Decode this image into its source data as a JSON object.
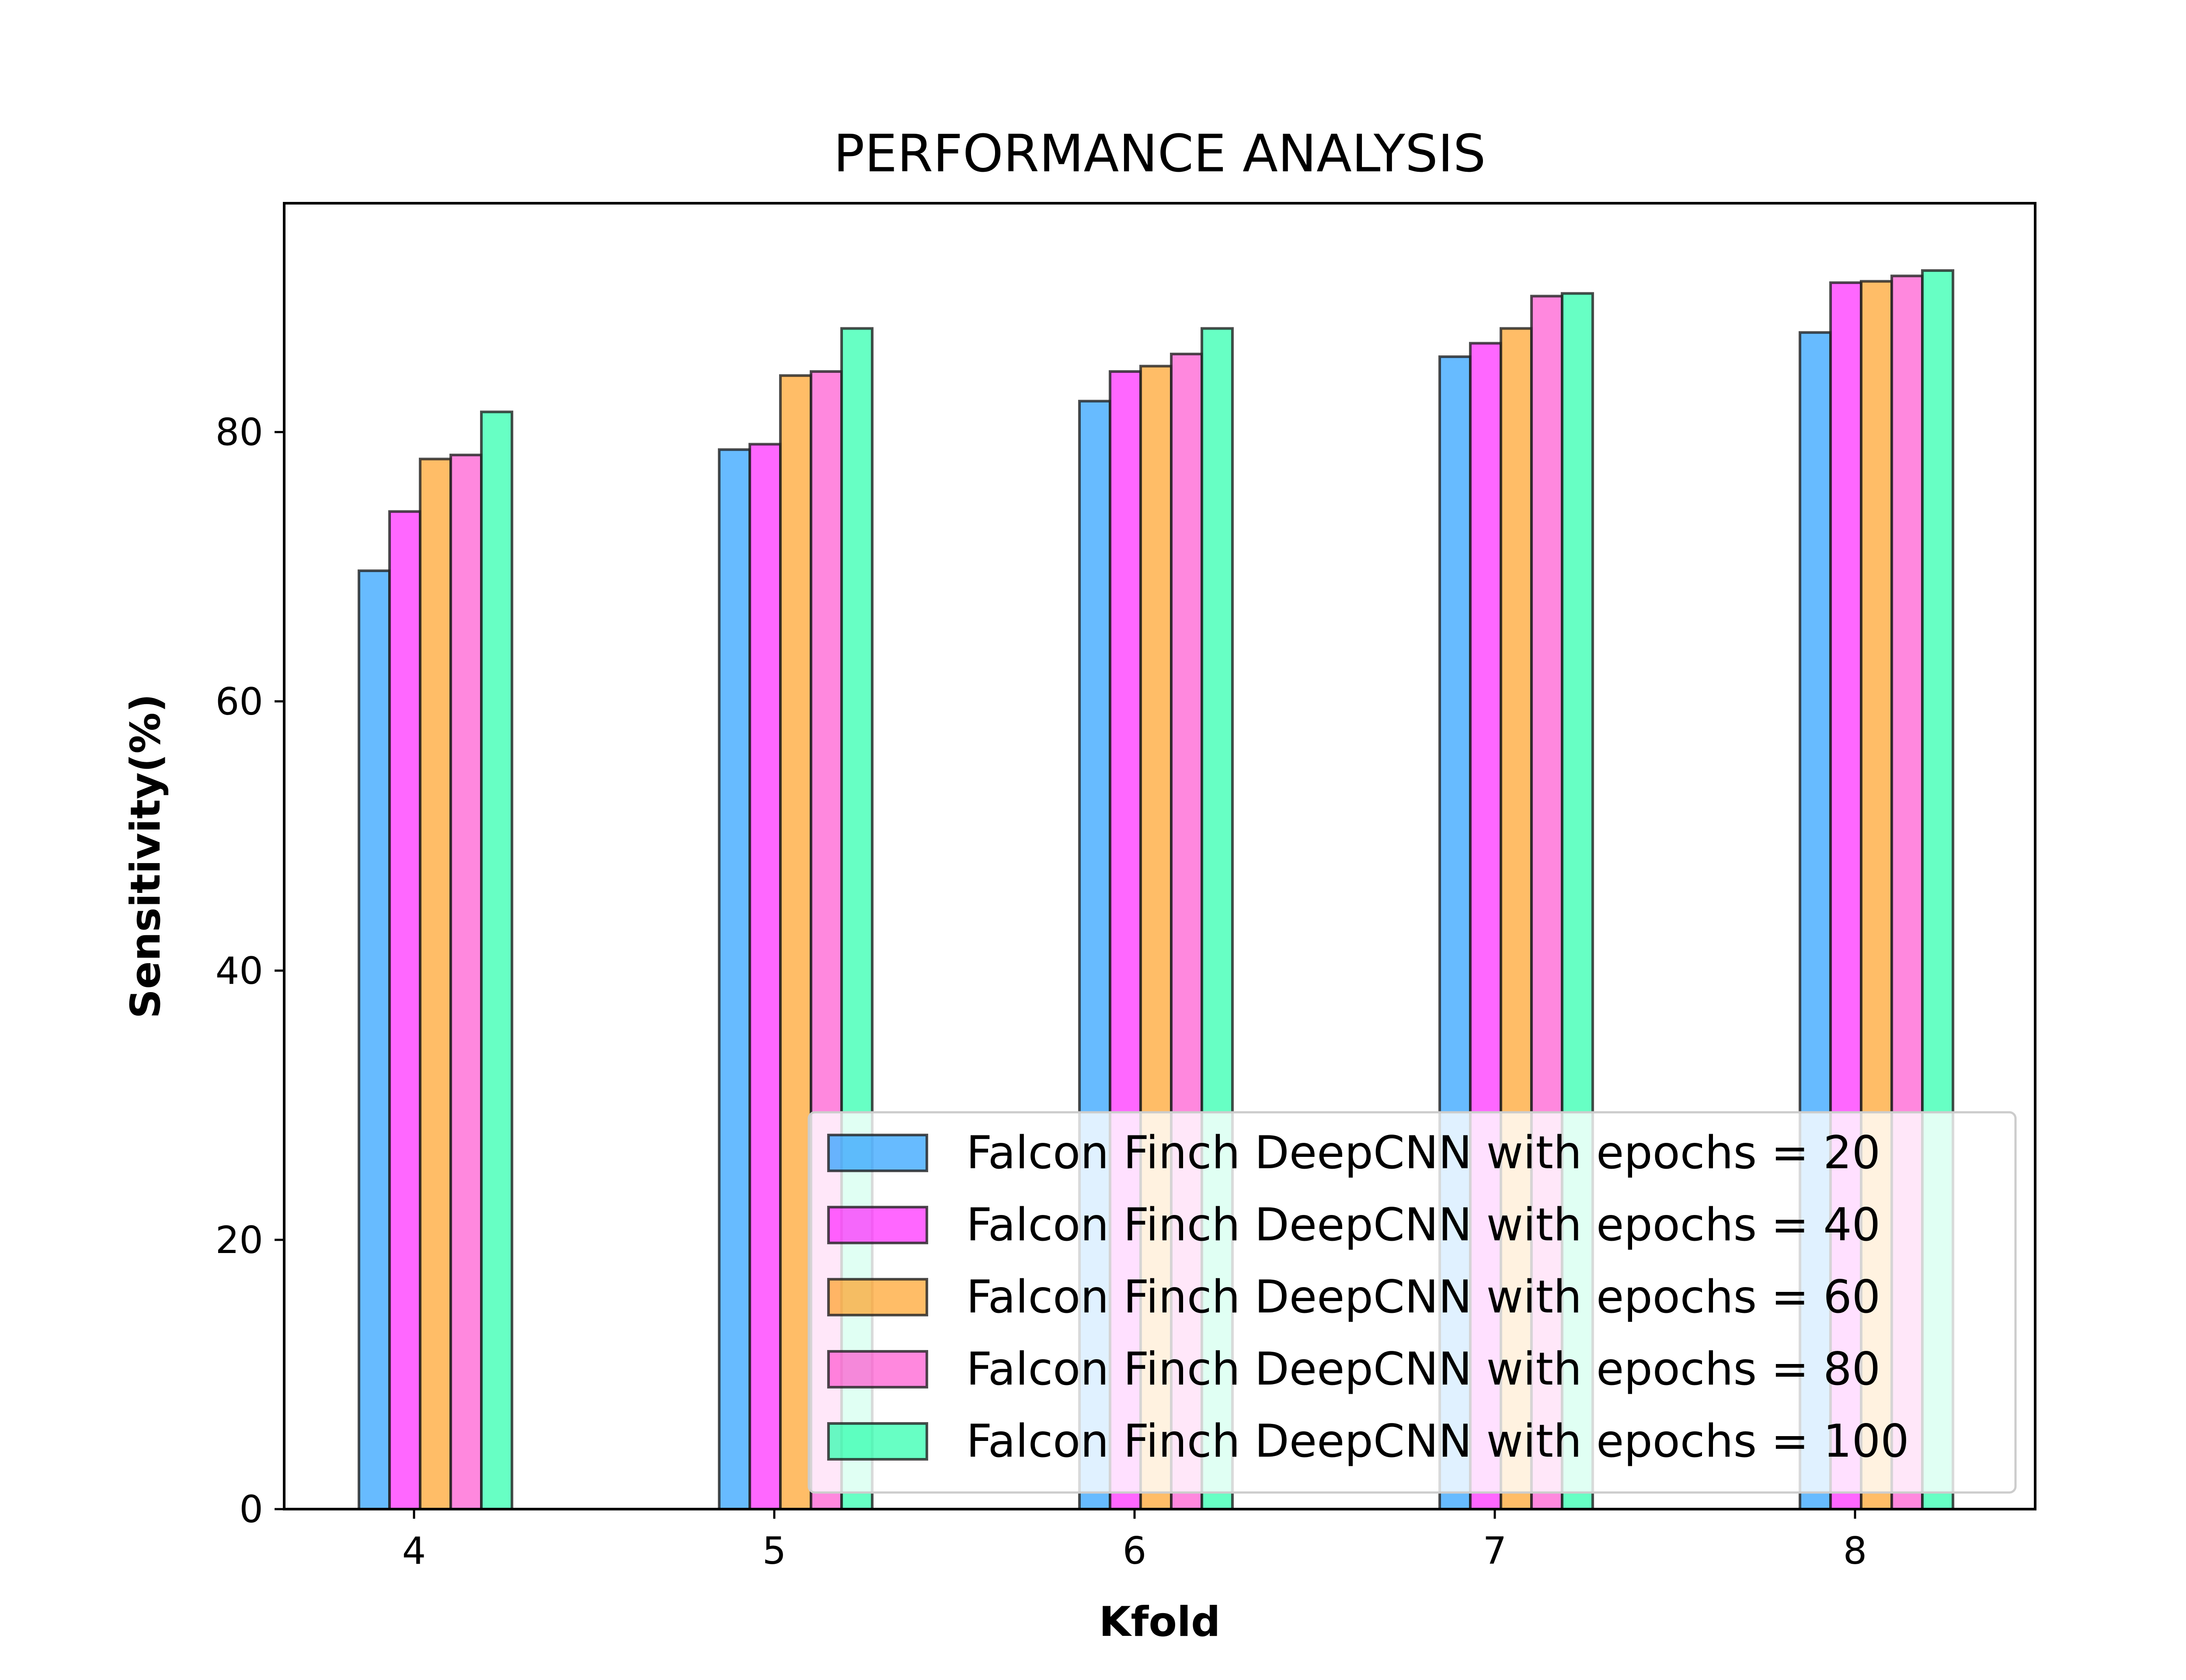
{
  "chart_data": {
    "type": "bar",
    "title": "PERFORMANCE ANALYSIS",
    "xlabel": "Kfold",
    "ylabel": "Sensitivity(%)",
    "categories": [
      "4",
      "5",
      "6",
      "7",
      "8"
    ],
    "ylim": [
      0,
      97
    ],
    "yticks": [
      "0",
      "20",
      "40",
      "60",
      "80"
    ],
    "grid": false,
    "legend_position": "lower-right",
    "series": [
      {
        "name": "Falcon Finch DeepCNN with epochs = 20",
        "color": "#1f9bff",
        "values": [
          69.7,
          78.7,
          82.3,
          85.6,
          87.4
        ]
      },
      {
        "name": "Falcon Finch DeepCNN with epochs = 40",
        "color": "#ff1fff",
        "values": [
          74.1,
          79.1,
          84.5,
          86.6,
          91.1
        ]
      },
      {
        "name": "Falcon Finch DeepCNN with epochs = 60",
        "color": "#ff9e1f",
        "values": [
          78.0,
          84.2,
          84.9,
          87.7,
          91.2
        ]
      },
      {
        "name": "Falcon Finch DeepCNN with epochs = 80",
        "color": "#ff4fcf",
        "values": [
          78.3,
          84.5,
          85.8,
          90.1,
          91.6
        ]
      },
      {
        "name": "Falcon Finch DeepCNN with epochs = 100",
        "color": "#1fffa8",
        "values": [
          81.5,
          87.7,
          87.7,
          90.3,
          92.0
        ]
      }
    ]
  }
}
